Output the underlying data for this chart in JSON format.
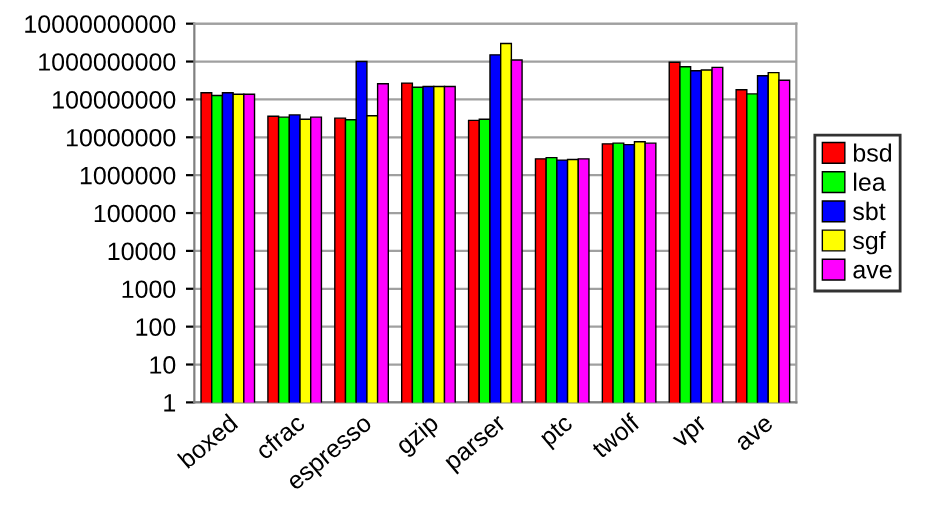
{
  "chart_data": {
    "type": "bar",
    "log": "y",
    "grid": "y",
    "legend": "right",
    "categories": [
      "boxed",
      "cfrac",
      "espresso",
      "gzip",
      "parser",
      "ptc",
      "twolf",
      "vpr",
      "ave"
    ],
    "ylim": [
      1,
      10000000000
    ],
    "yticks": [
      1,
      10,
      100,
      1000,
      10000,
      100000,
      1000000,
      10000000,
      100000000,
      1000000000,
      10000000000
    ],
    "series": [
      {
        "name": "bsd",
        "color": "#ff0000",
        "values": [
          150000000,
          36000000,
          32000000,
          270000000,
          28000000,
          2700000,
          6700000,
          960000000,
          180000000
        ]
      },
      {
        "name": "lea",
        "color": "#00ff00",
        "values": [
          127000000,
          34000000,
          29000000,
          210000000,
          30000000,
          2900000,
          7000000,
          730000000,
          140000000
        ]
      },
      {
        "name": "sbt",
        "color": "#0000ff",
        "values": [
          150000000,
          39000000,
          1000000000,
          220000000,
          1500000000,
          2500000,
          6400000,
          570000000,
          420000000
        ]
      },
      {
        "name": "sgf",
        "color": "#ffff00",
        "values": [
          137000000,
          30000000,
          37000000,
          220000000,
          3000000000,
          2600000,
          7600000,
          600000000,
          510000000
        ]
      },
      {
        "name": "ave",
        "color": "#ff00ff",
        "values": [
          137000000,
          34000000,
          260000000,
          220000000,
          1100000000,
          2700000,
          7000000,
          700000000,
          320000000
        ]
      }
    ]
  }
}
